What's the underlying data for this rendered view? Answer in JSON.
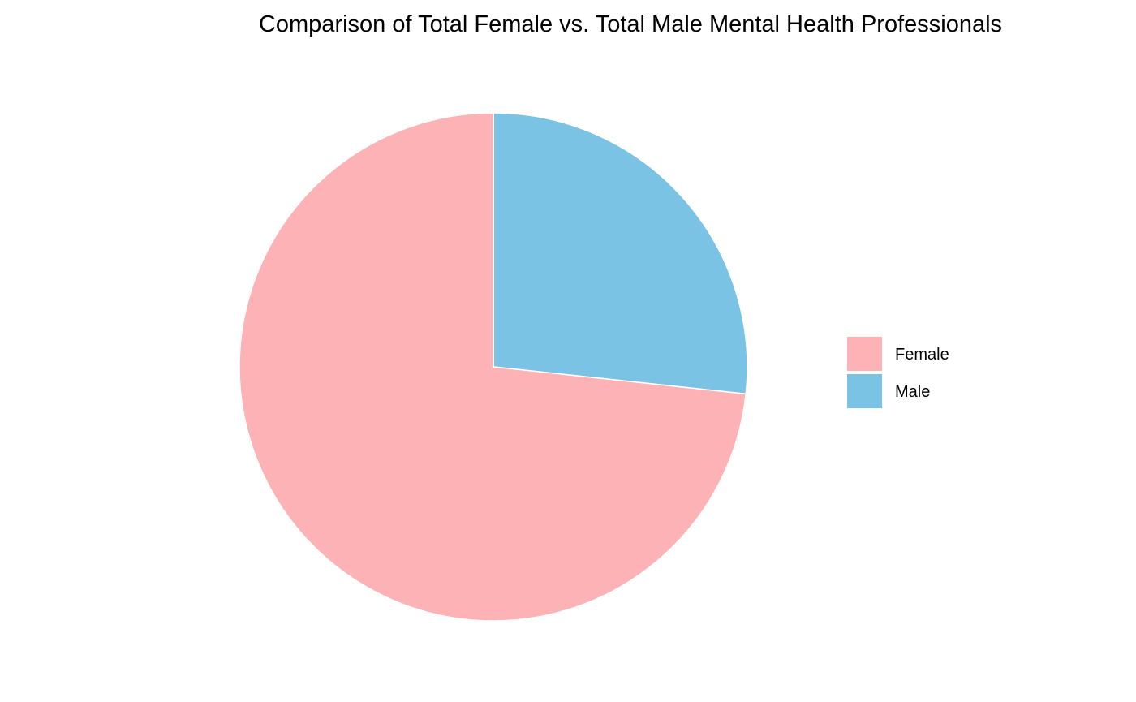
{
  "chart_data": {
    "type": "pie",
    "title": "Comparison of Total Female vs. Total Male Mental Health Professionals",
    "slices": [
      {
        "label": "Female",
        "share_percent": 73.3,
        "color": "#FDB3B5"
      },
      {
        "label": "Male",
        "share_percent": 26.7,
        "color": "#7BC3E5"
      }
    ],
    "start_angle": "12 o'clock",
    "direction": "clockwise",
    "slice_order": [
      "Male",
      "Female"
    ],
    "legend": {
      "placement": "right",
      "entries": [
        "Female",
        "Male"
      ]
    }
  }
}
